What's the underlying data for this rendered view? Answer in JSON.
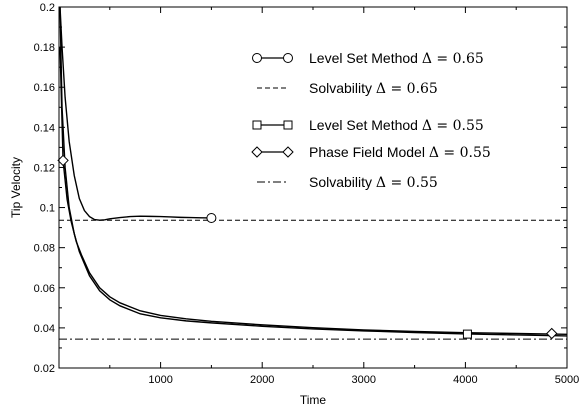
{
  "chart_data": {
    "type": "line",
    "title": "",
    "xlabel": "Time",
    "ylabel": "Tip Velocity",
    "xlim": [
      0,
      5000
    ],
    "ylim": [
      0.02,
      0.2
    ],
    "x_ticks": [
      1000,
      2000,
      3000,
      4000,
      5000
    ],
    "x_tick_labels": [
      "1000",
      "2000",
      "3000",
      "4000",
      "5000"
    ],
    "y_ticks": [
      0.02,
      0.04,
      0.06,
      0.08,
      0.1,
      0.12,
      0.14,
      0.16,
      0.18,
      0.2
    ],
    "y_tick_labels": [
      "0.02",
      "0.04",
      "0.06",
      "0.08",
      "0.1",
      "0.12",
      "0.14",
      "0.16",
      "0.18",
      "0.2"
    ],
    "grid": false,
    "legend_position": "top-right",
    "series": [
      {
        "name": "Level Set Method",
        "delta": "Δ = 0.65",
        "style": "solid",
        "marker": "circle",
        "marker_points": [
          [
            1500,
            0.0948
          ]
        ],
        "x": [
          10,
          30,
          60,
          100,
          150,
          200,
          250,
          300,
          350,
          400,
          450,
          500,
          600,
          700,
          800,
          900,
          1000,
          1100,
          1200,
          1300,
          1400,
          1500
        ],
        "y": [
          0.2,
          0.18,
          0.155,
          0.133,
          0.116,
          0.1045,
          0.0985,
          0.0955,
          0.094,
          0.0937,
          0.0939,
          0.0944,
          0.095,
          0.0955,
          0.0957,
          0.0956,
          0.0955,
          0.0953,
          0.0951,
          0.095,
          0.0949,
          0.0948
        ]
      },
      {
        "name": "Solvability",
        "delta": "Δ = 0.65",
        "style": "dashed",
        "marker": "none",
        "x": [
          0,
          5000
        ],
        "y": [
          0.0937,
          0.0937
        ]
      },
      {
        "name": "Level Set Method",
        "delta": "Δ = 0.55",
        "style": "solid",
        "marker": "square",
        "marker_points": [
          [
            4020,
            0.0369
          ]
        ],
        "x": [
          10,
          30,
          60,
          100,
          150,
          200,
          300,
          400,
          500,
          600,
          800,
          1000,
          1250,
          1500,
          2000,
          2500,
          3000,
          3500,
          4000,
          4500,
          5000
        ],
        "y": [
          0.2,
          0.15,
          0.12,
          0.1,
          0.087,
          0.078,
          0.066,
          0.0585,
          0.054,
          0.051,
          0.047,
          0.045,
          0.0435,
          0.0425,
          0.0408,
          0.0395,
          0.0385,
          0.0377,
          0.037,
          0.0365,
          0.036
        ]
      },
      {
        "name": "Phase Field Model",
        "delta": "Δ = 0.55",
        "style": "solid",
        "marker": "diamond",
        "marker_points": [
          [
            40,
            0.1235
          ],
          [
            4850,
            0.0372
          ]
        ],
        "x": [
          10,
          40,
          80,
          120,
          170,
          220,
          300,
          400,
          500,
          600,
          800,
          1000,
          1250,
          1500,
          2000,
          2500,
          3000,
          3500,
          4000,
          4500,
          5000
        ],
        "y": [
          0.18,
          0.1235,
          0.104,
          0.093,
          0.083,
          0.0765,
          0.0675,
          0.06,
          0.0555,
          0.0525,
          0.0485,
          0.0462,
          0.0445,
          0.0433,
          0.0415,
          0.0401,
          0.039,
          0.0382,
          0.0376,
          0.0372,
          0.0368
        ]
      },
      {
        "name": "Solvability",
        "delta": "Δ = 0.55",
        "style": "dashdot",
        "marker": "none",
        "x": [
          0,
          5000
        ],
        "y": [
          0.0344,
          0.0344
        ]
      }
    ]
  }
}
